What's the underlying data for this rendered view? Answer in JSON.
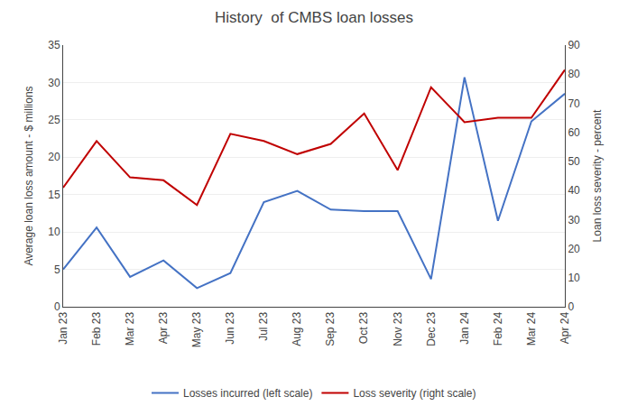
{
  "chart_data": {
    "type": "line",
    "title": "History  of CMBS loan losses",
    "y_label": "Average loan loss amount - $ millions",
    "y2_label": "Loan loss severity - percent",
    "categories": [
      "Jan 23",
      "Feb 23",
      "Mar 23",
      "Apr 23",
      "May 23",
      "Jun 23",
      "Jul 23",
      "Aug 23",
      "Sep 23",
      "Oct 23",
      "Nov 23",
      "Dec 23",
      "Jan 24",
      "Feb 24",
      "Mar 24",
      "Apr 24"
    ],
    "series": [
      {
        "name": "Losses incurred (left scale)",
        "color": "#4472C4",
        "axis": "y",
        "values": [
          5.0,
          10.6,
          4.0,
          6.2,
          2.5,
          4.5,
          14.0,
          15.5,
          13.0,
          12.8,
          12.8,
          3.7,
          30.7,
          11.5,
          24.8,
          28.5
        ]
      },
      {
        "name": "Loss severity (right scale)",
        "color": "#C00000",
        "axis": "y2",
        "values": [
          41.0,
          57.0,
          44.5,
          43.5,
          35.0,
          59.5,
          57.0,
          52.5,
          56.0,
          66.5,
          47.0,
          75.5,
          63.5,
          65.0,
          65.0,
          81.5
        ]
      }
    ],
    "ylim": [
      0,
      35
    ],
    "yticks": [
      0,
      5,
      10,
      15,
      20,
      25,
      30,
      35
    ],
    "y2lim": [
      0,
      90
    ],
    "y2ticks": [
      0,
      10,
      20,
      30,
      40,
      50,
      60,
      70,
      80,
      90
    ],
    "grid": true,
    "legend": "bottom"
  }
}
